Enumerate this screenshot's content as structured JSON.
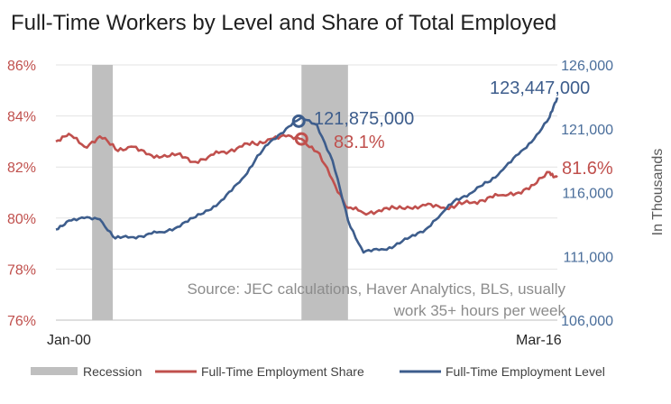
{
  "chart_data": {
    "type": "line",
    "title": "Full-Time Workers by Level and Share of Total Employed",
    "x_start_label": "Jan-00",
    "x_end_label": "Mar-16",
    "left_axis": {
      "ticks": [
        "86%",
        "84%",
        "82%",
        "80%",
        "78%",
        "76%"
      ],
      "ylim": [
        76,
        86
      ]
    },
    "right_axis": {
      "label": "In Thousands",
      "ticks": [
        "126,000",
        "121,000",
        "116,000",
        "111,000",
        "106,000"
      ],
      "ylim": [
        106000,
        126000
      ]
    },
    "recessions": [
      {
        "start": "2001-03",
        "end": "2001-11"
      },
      {
        "start": "2007-12",
        "end": "2009-06"
      }
    ],
    "series": [
      {
        "name": "Full-Time Employment Share",
        "axis": "left",
        "color": "#c0504d",
        "points": [
          [
            "2000-01",
            83.0
          ],
          [
            "2000-06",
            83.3
          ],
          [
            "2000-12",
            82.8
          ],
          [
            "2001-06",
            83.2
          ],
          [
            "2001-12",
            82.7
          ],
          [
            "2002-06",
            82.8
          ],
          [
            "2002-12",
            82.5
          ],
          [
            "2003-06",
            82.4
          ],
          [
            "2003-12",
            82.5
          ],
          [
            "2004-06",
            82.2
          ],
          [
            "2004-12",
            82.4
          ],
          [
            "2005-06",
            82.6
          ],
          [
            "2005-12",
            82.8
          ],
          [
            "2006-06",
            82.9
          ],
          [
            "2006-12",
            83.1
          ],
          [
            "2007-06",
            83.2
          ],
          [
            "2007-12",
            83.1
          ],
          [
            "2008-06",
            82.6
          ],
          [
            "2008-12",
            81.5
          ],
          [
            "2009-06",
            80.4
          ],
          [
            "2009-12",
            80.2
          ],
          [
            "2010-06",
            80.3
          ],
          [
            "2010-12",
            80.4
          ],
          [
            "2011-06",
            80.4
          ],
          [
            "2011-12",
            80.5
          ],
          [
            "2012-06",
            80.4
          ],
          [
            "2012-12",
            80.5
          ],
          [
            "2013-06",
            80.6
          ],
          [
            "2013-12",
            80.8
          ],
          [
            "2014-06",
            80.9
          ],
          [
            "2014-12",
            81.0
          ],
          [
            "2015-06",
            81.3
          ],
          [
            "2015-12",
            81.8
          ],
          [
            "2016-03",
            81.6
          ]
        ]
      },
      {
        "name": "Full-Time Employment Level",
        "axis": "right",
        "color": "#3d5d8c",
        "points": [
          [
            "2000-01",
            113100
          ],
          [
            "2000-06",
            113800
          ],
          [
            "2000-12",
            114000
          ],
          [
            "2001-06",
            113900
          ],
          [
            "2001-12",
            112400
          ],
          [
            "2002-06",
            112500
          ],
          [
            "2002-12",
            112700
          ],
          [
            "2003-06",
            112900
          ],
          [
            "2003-12",
            113300
          ],
          [
            "2004-06",
            114000
          ],
          [
            "2004-12",
            114600
          ],
          [
            "2005-06",
            115500
          ],
          [
            "2005-12",
            116800
          ],
          [
            "2006-06",
            118500
          ],
          [
            "2006-12",
            120000
          ],
          [
            "2007-06",
            121000
          ],
          [
            "2007-12",
            121875
          ],
          [
            "2008-06",
            121300
          ],
          [
            "2008-12",
            118500
          ],
          [
            "2009-06",
            113800
          ],
          [
            "2009-12",
            111300
          ],
          [
            "2010-06",
            111500
          ],
          [
            "2010-12",
            111800
          ],
          [
            "2011-06",
            112500
          ],
          [
            "2011-12",
            113100
          ],
          [
            "2012-06",
            114300
          ],
          [
            "2012-12",
            115500
          ],
          [
            "2013-06",
            116000
          ],
          [
            "2013-12",
            116800
          ],
          [
            "2014-06",
            117800
          ],
          [
            "2014-12",
            119000
          ],
          [
            "2015-06",
            120200
          ],
          [
            "2015-12",
            121900
          ],
          [
            "2016-03",
            123447
          ]
        ]
      }
    ],
    "annotations": {
      "peak_level": "121,875,000",
      "peak_share": "83.1%",
      "latest_level": "123,447,000",
      "latest_share": "81.6%",
      "source_line1": "Source: JEC calculations, Haver Analytics, BLS, usually",
      "source_line2": "work 35+ hours per week"
    },
    "legend": [
      {
        "label": "Recession",
        "kind": "box",
        "color": "#bfbfbf"
      },
      {
        "label": "Full-Time Employment Share",
        "kind": "line",
        "color": "#c0504d"
      },
      {
        "label": "Full-Time Employment Level",
        "kind": "line",
        "color": "#3d5d8c"
      }
    ],
    "legend_position": "bottom",
    "recession_color": "#bfbfbf",
    "grid": true
  }
}
